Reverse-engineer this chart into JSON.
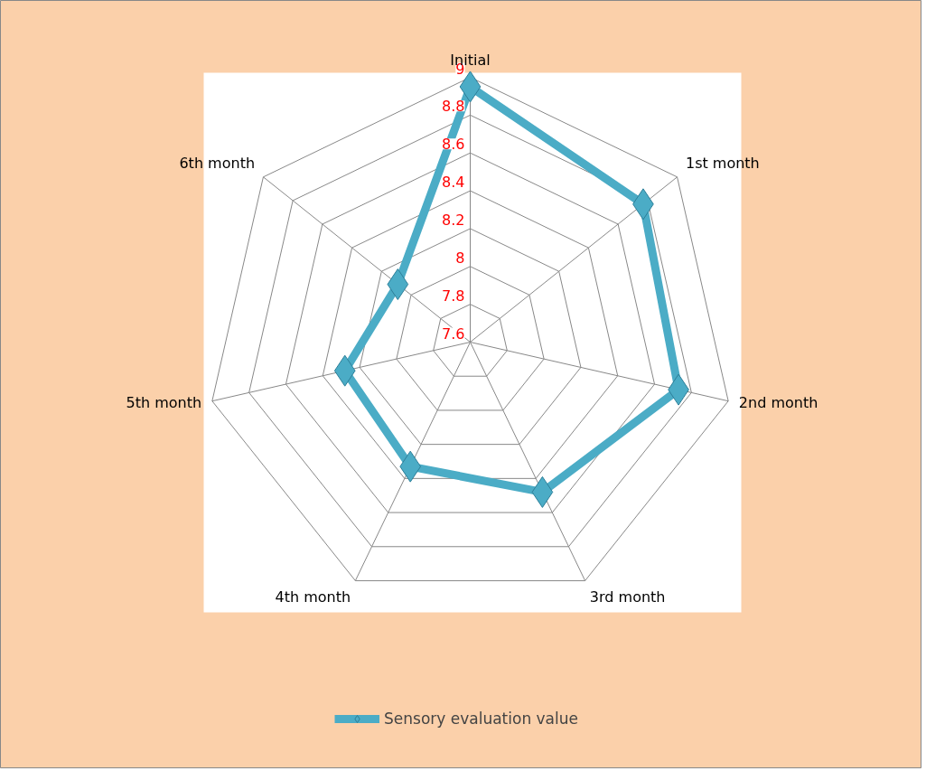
{
  "chart_data": {
    "type": "radar",
    "categories": [
      "Initial",
      "1st month",
      "2nd month",
      "3rd month",
      "4th month",
      "5th month",
      "6th month"
    ],
    "series": [
      {
        "name": "Sensory evaluation value",
        "color": "#4bacc6",
        "values": [
          8.95,
          8.77,
          8.73,
          8.48,
          8.33,
          8.28,
          8.09
        ]
      }
    ],
    "ylim": [
      7.6,
      9
    ],
    "yticks": [
      7.6,
      7.8,
      8,
      8.2,
      8.4,
      8.6,
      8.8,
      9
    ],
    "marker": "diamond",
    "legend": "bottom",
    "grid": true
  }
}
